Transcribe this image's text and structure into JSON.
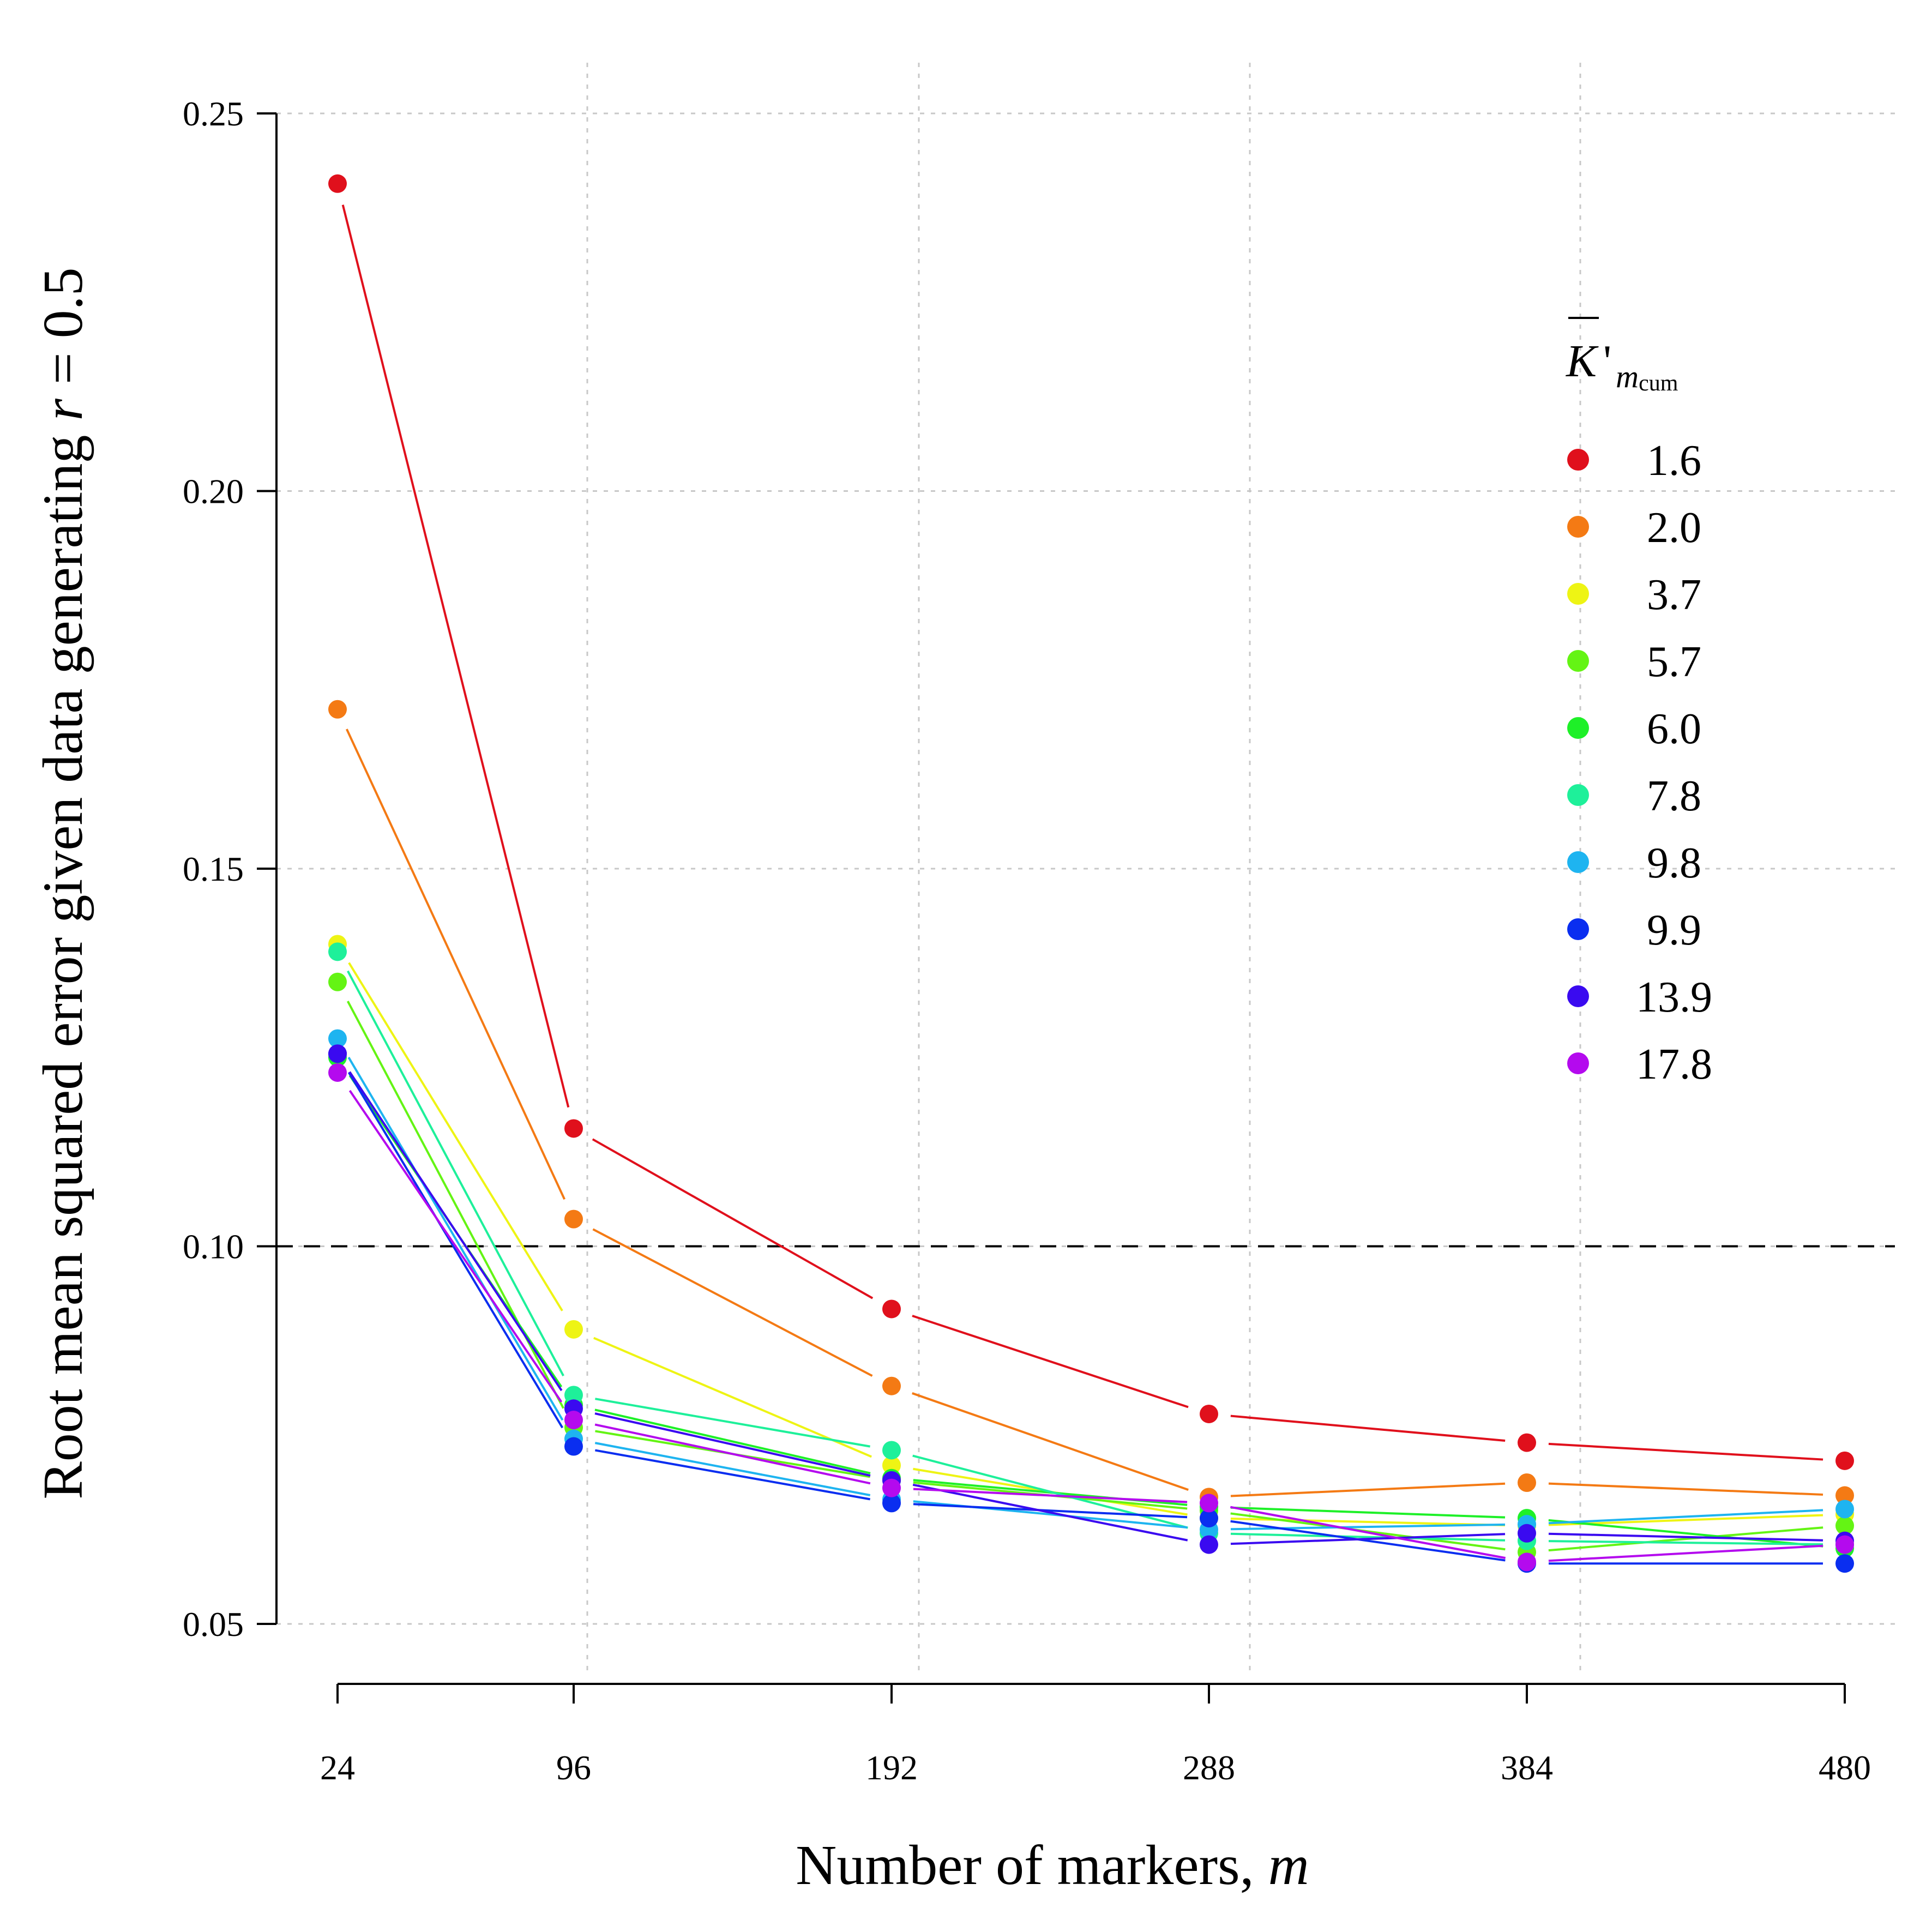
{
  "chart_data": {
    "type": "line",
    "xlabel": "Number of markers, ",
    "xlabel_var": "m",
    "ylabel": "Root mean squared error given data generating ",
    "ylabel_var": "r",
    "ylabel_suffix": " = 0.5",
    "x": [
      24,
      96,
      192,
      288,
      384,
      480
    ],
    "x_ticks": [
      "24",
      "96",
      "192",
      "288",
      "384",
      "480"
    ],
    "y_ticks": [
      "0.05",
      "0.10",
      "0.15",
      "0.20",
      "0.25"
    ],
    "ylim": [
      0.05,
      0.25
    ],
    "grid": true,
    "reference_line": 0.1,
    "legend": {
      "title_main": "K",
      "title_prime": "'",
      "title_sub": "m",
      "title_subsub": "cum",
      "placement": "right"
    },
    "series": [
      {
        "name": "1.6",
        "color": "#e0101c",
        "values": [
          0.2407,
          0.1156,
          0.0917,
          0.0778,
          0.074,
          0.0716
        ]
      },
      {
        "name": "2.0",
        "color": "#f47a14",
        "values": [
          0.1711,
          0.1036,
          0.0815,
          0.0668,
          0.0687,
          0.067
        ]
      },
      {
        "name": "3.7",
        "color": "#eef414",
        "values": [
          0.14,
          0.089,
          0.071,
          0.064,
          0.063,
          0.0645
        ]
      },
      {
        "name": "5.7",
        "color": "#64f414",
        "values": [
          0.135,
          0.076,
          0.069,
          0.065,
          0.0595,
          0.063
        ]
      },
      {
        "name": "6.0",
        "color": "#1ef028",
        "values": [
          0.125,
          0.079,
          0.0693,
          0.0655,
          0.064,
          0.06
        ]
      },
      {
        "name": "7.8",
        "color": "#1ef09a",
        "values": [
          0.139,
          0.0803,
          0.073,
          0.062,
          0.061,
          0.0605
        ]
      },
      {
        "name": "9.8",
        "color": "#1eb4f0",
        "values": [
          0.1275,
          0.0745,
          0.0665,
          0.0625,
          0.0632,
          0.0652
        ]
      },
      {
        "name": "9.9",
        "color": "#0a2ef0",
        "values": [
          0.1255,
          0.0735,
          0.066,
          0.064,
          0.058,
          0.058
        ]
      },
      {
        "name": "13.9",
        "color": "#3a0af0",
        "values": [
          0.1255,
          0.0785,
          0.069,
          0.0605,
          0.062,
          0.061
        ]
      },
      {
        "name": "17.8",
        "color": "#b40aee",
        "values": [
          0.123,
          0.077,
          0.068,
          0.066,
          0.0582,
          0.0605
        ]
      }
    ]
  }
}
